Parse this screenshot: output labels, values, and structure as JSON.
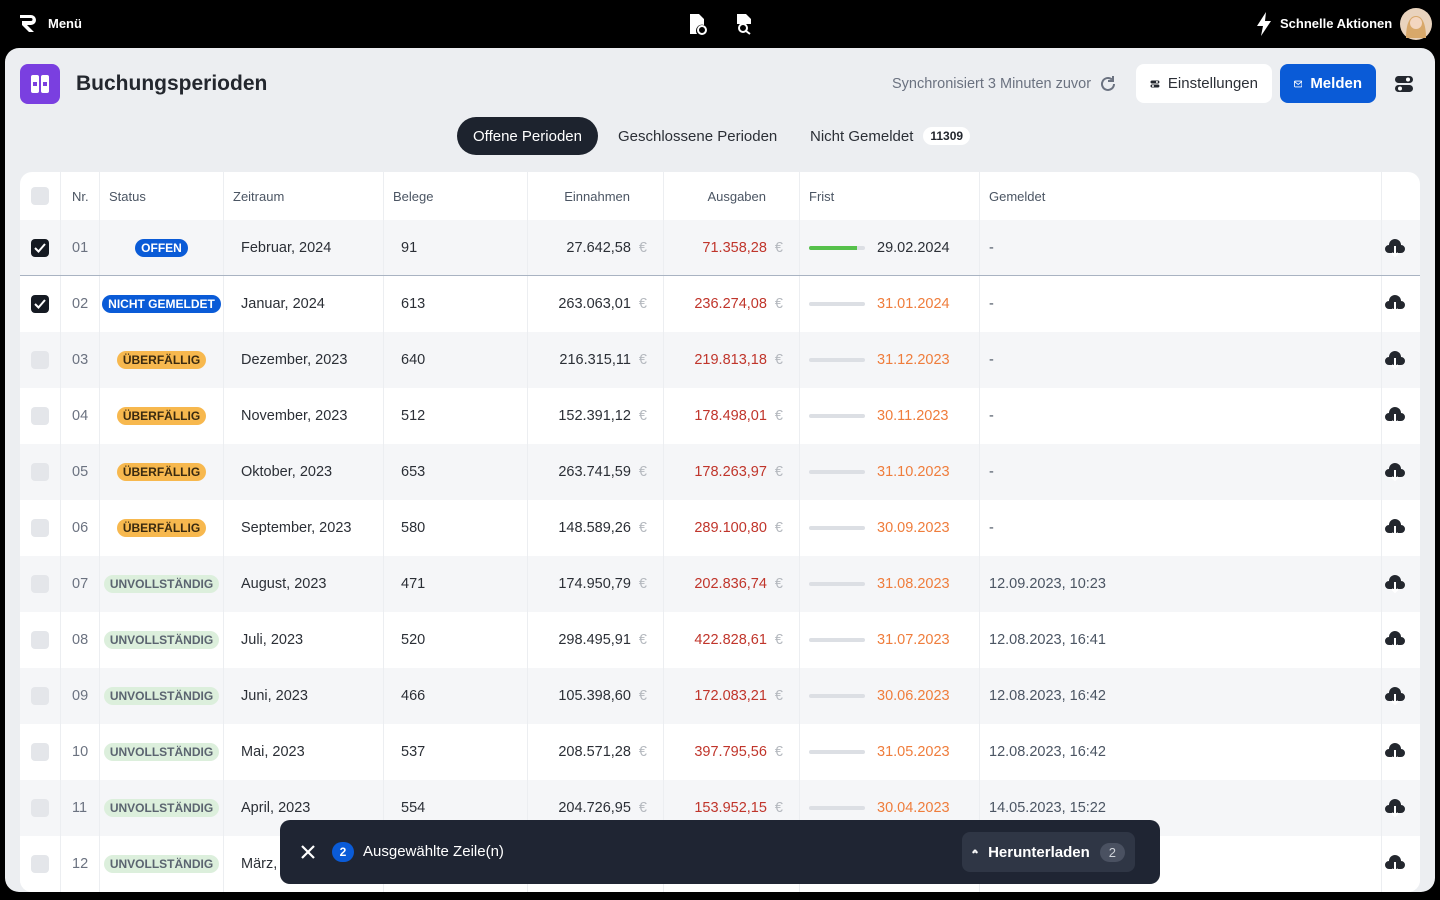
{
  "topbar": {
    "menu": "Menü",
    "quick_actions": "Schnelle Aktionen"
  },
  "header": {
    "title": "Buchungsperioden",
    "sync": "Synchronisiert 3 Minuten zuvor",
    "settings": "Einstellungen",
    "report": "Melden"
  },
  "tabs": [
    {
      "label": "Offene Perioden",
      "active": true
    },
    {
      "label": "Geschlossene Perioden",
      "active": false
    },
    {
      "label": "Nicht Gemeldet",
      "active": false,
      "badge": 11309
    }
  ],
  "table": {
    "columns": [
      "Nr.",
      "Status",
      "Zeitraum",
      "Belege",
      "Einnahmen",
      "Ausgaben",
      "Frist",
      "Gemeldet"
    ],
    "currency": "€",
    "rows": [
      {
        "selected": true,
        "nr": "01",
        "status": "OFFEN",
        "status_bg": "#0a5bd7",
        "status_fg": "#ffffff",
        "period": "Februar, 2024",
        "receipts": "91",
        "income": "27.642,58",
        "expenses": "71.358,28",
        "deadline": "29.02.2024",
        "deadline_color": "#2b2f36",
        "deadline_progress": 85,
        "reported": "-"
      },
      {
        "selected": true,
        "nr": "02",
        "status": "NICHT GEMELDET",
        "status_bg": "#0a5bd7",
        "status_fg": "#ffffff",
        "period": "Januar, 2024",
        "receipts": "613",
        "income": "263.063,01",
        "expenses": "236.274,08",
        "deadline": "31.01.2024",
        "deadline_color": "#ef7d3c",
        "deadline_progress": 0,
        "reported": "-"
      },
      {
        "selected": false,
        "nr": "03",
        "status": "ÜBERFÄLLIG",
        "status_bg": "#f7b84e",
        "status_fg": "#3a2a10",
        "period": "Dezember, 2023",
        "receipts": "640",
        "income": "216.315,11",
        "expenses": "219.813,18",
        "deadline": "31.12.2023",
        "deadline_color": "#ef7d3c",
        "deadline_progress": 0,
        "reported": "-"
      },
      {
        "selected": false,
        "nr": "04",
        "status": "ÜBERFÄLLIG",
        "status_bg": "#f7b84e",
        "status_fg": "#3a2a10",
        "period": "November, 2023",
        "receipts": "512",
        "income": "152.391,12",
        "expenses": "178.498,01",
        "deadline": "30.11.2023",
        "deadline_color": "#ef7d3c",
        "deadline_progress": 0,
        "reported": "-"
      },
      {
        "selected": false,
        "nr": "05",
        "status": "ÜBERFÄLLIG",
        "status_bg": "#f7b84e",
        "status_fg": "#3a2a10",
        "period": "Oktober, 2023",
        "receipts": "653",
        "income": "263.741,59",
        "expenses": "178.263,97",
        "deadline": "31.10.2023",
        "deadline_color": "#ef7d3c",
        "deadline_progress": 0,
        "reported": "-"
      },
      {
        "selected": false,
        "nr": "06",
        "status": "ÜBERFÄLLIG",
        "status_bg": "#f7b84e",
        "status_fg": "#3a2a10",
        "period": "September, 2023",
        "receipts": "580",
        "income": "148.589,26",
        "expenses": "289.100,80",
        "deadline": "30.09.2023",
        "deadline_color": "#ef7d3c",
        "deadline_progress": 0,
        "reported": "-"
      },
      {
        "selected": false,
        "nr": "07",
        "status": "UNVOLLSTÄNDIG",
        "status_bg": "#dcefdc",
        "status_fg": "#5b6470",
        "period": "August, 2023",
        "receipts": "471",
        "income": "174.950,79",
        "expenses": "202.836,74",
        "deadline": "31.08.2023",
        "deadline_color": "#ef7d3c",
        "deadline_progress": 0,
        "reported": "12.09.2023, 10:23"
      },
      {
        "selected": false,
        "nr": "08",
        "status": "UNVOLLSTÄNDIG",
        "status_bg": "#dcefdc",
        "status_fg": "#5b6470",
        "period": "Juli, 2023",
        "receipts": "520",
        "income": "298.495,91",
        "expenses": "422.828,61",
        "deadline": "31.07.2023",
        "deadline_color": "#ef7d3c",
        "deadline_progress": 0,
        "reported": "12.08.2023, 16:41"
      },
      {
        "selected": false,
        "nr": "09",
        "status": "UNVOLLSTÄNDIG",
        "status_bg": "#dcefdc",
        "status_fg": "#5b6470",
        "period": "Juni, 2023",
        "receipts": "466",
        "income": "105.398,60",
        "expenses": "172.083,21",
        "deadline": "30.06.2023",
        "deadline_color": "#ef7d3c",
        "deadline_progress": 0,
        "reported": "12.08.2023, 16:42"
      },
      {
        "selected": false,
        "nr": "10",
        "status": "UNVOLLSTÄNDIG",
        "status_bg": "#dcefdc",
        "status_fg": "#5b6470",
        "period": "Mai, 2023",
        "receipts": "537",
        "income": "208.571,28",
        "expenses": "397.795,56",
        "deadline": "31.05.2023",
        "deadline_color": "#ef7d3c",
        "deadline_progress": 0,
        "reported": "12.08.2023, 16:42"
      },
      {
        "selected": false,
        "nr": "11",
        "status": "UNVOLLSTÄNDIG",
        "status_bg": "#dcefdc",
        "status_fg": "#5b6470",
        "period": "April, 2023",
        "receipts": "554",
        "income": "204.726,95",
        "expenses": "153.952,15",
        "deadline": "30.04.2023",
        "deadline_color": "#ef7d3c",
        "deadline_progress": 0,
        "reported": "14.05.2023, 15:22"
      },
      {
        "selected": false,
        "nr": "12",
        "status": "UNVOLLSTÄNDIG",
        "status_bg": "#dcefdc",
        "status_fg": "#5b6470",
        "period": "März,"
      }
    ]
  },
  "selection_bar": {
    "count": 2,
    "label": "Ausgewählte Zeile(n)",
    "download": "Herunterladen",
    "download_count": 2
  }
}
